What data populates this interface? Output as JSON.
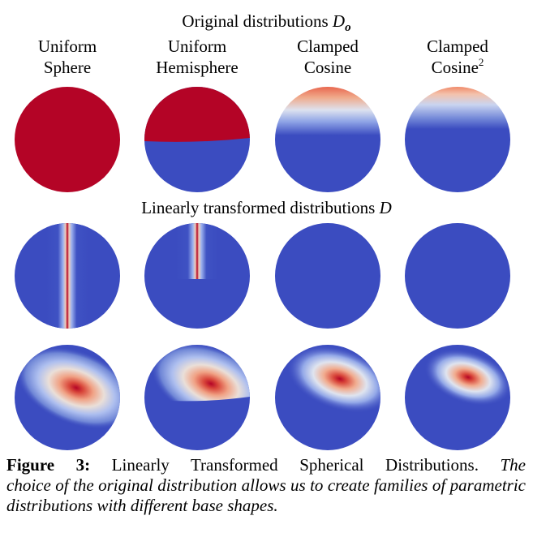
{
  "figure": {
    "top_heading": {
      "text": "Original distributions ",
      "symbol": "D",
      "subscript": "o"
    },
    "columns": [
      {
        "line1": "Uniform",
        "line2": "Sphere",
        "sup": ""
      },
      {
        "line1": "Uniform",
        "line2": "Hemisphere",
        "sup": ""
      },
      {
        "line1": "Clamped",
        "line2": "Cosine",
        "sup": ""
      },
      {
        "line1": "Clamped",
        "line2": "Cosine",
        "sup": "2"
      }
    ],
    "mid_heading": {
      "text": "Linearly transformed distributions ",
      "symbol": "D"
    },
    "colors": {
      "low": "#3b4cc0",
      "high": "#b40426",
      "mid": "#f2f2f2"
    }
  },
  "caption": {
    "label": "Figure 3:",
    "title": "Linearly Transformed Spherical Distributions.",
    "italic_lead": "The",
    "italic_rest": "choice of the original distribution allows us to create families of parametric distributions with different base shapes."
  }
}
